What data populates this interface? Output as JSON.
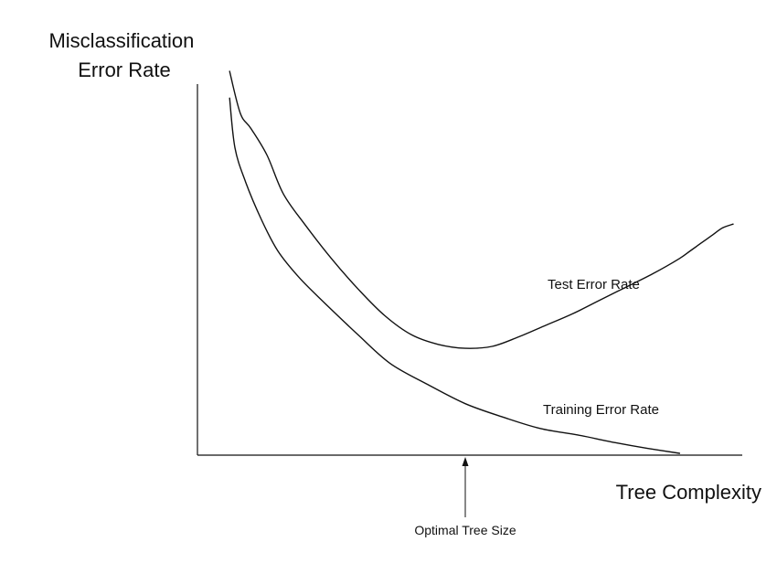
{
  "chart_data": {
    "type": "line",
    "title": "",
    "ylabel": "Misclassification\nError Rate",
    "ylabel_lines": [
      "Misclassification",
      "Error Rate"
    ],
    "xlabel": "Tree Complexity",
    "xlim": [
      0,
      100
    ],
    "ylim": [
      0,
      100
    ],
    "grid": false,
    "legend": "none",
    "ticks": "none",
    "series": [
      {
        "name": "Test Error Rate",
        "x": [
          6,
          8,
          10,
          13,
          16,
          20,
          25,
          30,
          35,
          40,
          45,
          50,
          55,
          60,
          65,
          70,
          75,
          80,
          85,
          90,
          92,
          94,
          96,
          98,
          100
        ],
        "y": [
          100,
          89,
          85,
          78,
          68,
          60,
          51,
          43,
          36,
          31,
          28.5,
          27.5,
          28,
          30.5,
          33.5,
          36.5,
          40,
          43.5,
          47,
          51,
          53,
          55,
          57,
          59,
          60
        ]
      },
      {
        "name": "Training Error Rate",
        "x": [
          6,
          7,
          9,
          12,
          15,
          19,
          24,
          30,
          36,
          43,
          50,
          57,
          64,
          71,
          78,
          84,
          90
        ],
        "y": [
          93,
          80,
          71,
          61,
          53,
          46,
          39,
          31,
          23.5,
          18,
          13,
          9.5,
          6.5,
          4.8,
          2.8,
          1.3,
          0
        ]
      }
    ],
    "annotations": [
      {
        "text": "Optimal Tree Size",
        "x": 50,
        "arrow": "up-to-x-axis"
      }
    ]
  }
}
